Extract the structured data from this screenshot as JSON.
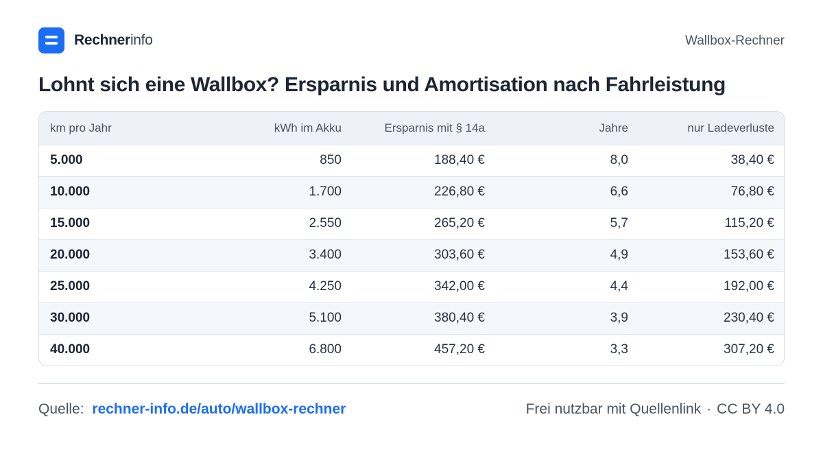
{
  "brand": {
    "name_strong": "Rechner",
    "name_light": "info",
    "color": "#1b6ef3"
  },
  "header": {
    "right_label": "Wallbox-Rechner"
  },
  "title": "Lohnt sich eine Wallbox? Ersparnis und Amortisation nach Fahrleistung",
  "table": {
    "columns": [
      "km pro Jahr",
      "kWh im Akku",
      "Ersparnis mit § 14a",
      "Jahre",
      "nur Ladeverluste"
    ],
    "rows": [
      [
        "5.000",
        "850",
        "188,40 €",
        "8,0",
        "38,40 €"
      ],
      [
        "10.000",
        "1.700",
        "226,80 €",
        "6,6",
        "76,80 €"
      ],
      [
        "15.000",
        "2.550",
        "265,20 €",
        "5,7",
        "115,20 €"
      ],
      [
        "20.000",
        "3.400",
        "303,60 €",
        "4,9",
        "153,60 €"
      ],
      [
        "25.000",
        "4.250",
        "342,00 €",
        "4,4",
        "192,00 €"
      ],
      [
        "30.000",
        "5.100",
        "380,40 €",
        "3,9",
        "230,40 €"
      ],
      [
        "40.000",
        "6.800",
        "457,20 €",
        "3,3",
        "307,20 €"
      ]
    ]
  },
  "footer": {
    "source_label": "Quelle:",
    "source_link": "rechner-info.de/auto/wallbox-rechner",
    "license_text": "Frei nutzbar mit Quellenlink",
    "separator": "·",
    "license": "CC BY 4.0"
  }
}
